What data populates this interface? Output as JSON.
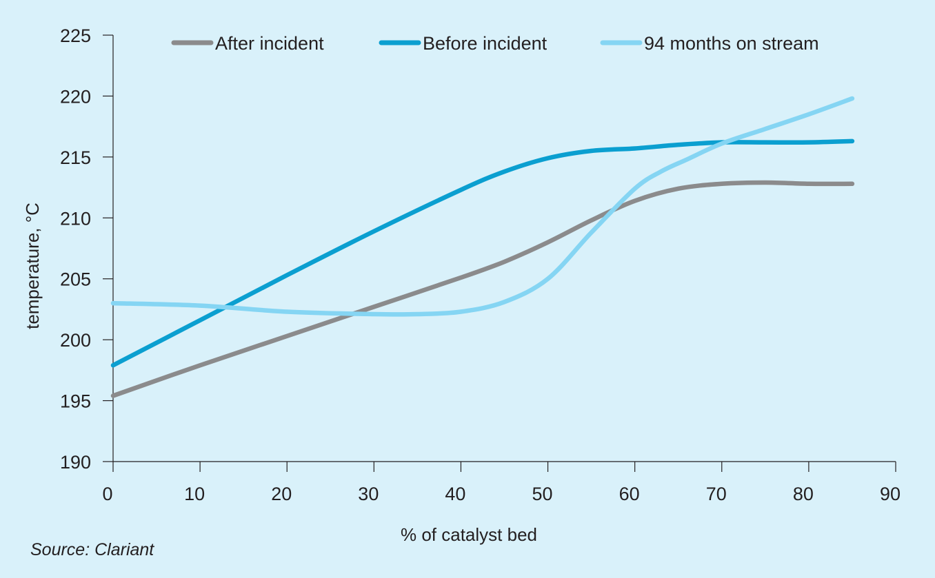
{
  "chart_data": {
    "type": "line",
    "xlabel": "% of catalyst bed",
    "ylabel": "temperature, °C",
    "xlim": [
      0,
      90
    ],
    "ylim": [
      190,
      225
    ],
    "x_ticks": [
      0,
      10,
      20,
      30,
      40,
      50,
      60,
      70,
      80,
      90
    ],
    "y_ticks": [
      190,
      195,
      200,
      205,
      210,
      215,
      220,
      225
    ],
    "grid": false,
    "legend_position": "top",
    "series": [
      {
        "name": "After incident",
        "color": "#8b8b8c",
        "x": [
          0,
          10,
          20,
          30,
          40,
          45,
          50,
          55,
          60,
          65,
          70,
          75,
          80,
          85
        ],
        "y": [
          195.4,
          197.9,
          200.3,
          202.7,
          205.1,
          206.4,
          208.0,
          209.8,
          211.4,
          212.4,
          212.8,
          212.9,
          212.8,
          212.8
        ]
      },
      {
        "name": "Before incident",
        "color": "#0b9fd0",
        "x": [
          0,
          10,
          20,
          30,
          40,
          45,
          50,
          55,
          60,
          65,
          70,
          75,
          80,
          85
        ],
        "y": [
          197.9,
          201.6,
          205.3,
          208.9,
          212.3,
          213.8,
          214.9,
          215.5,
          215.7,
          216.0,
          216.2,
          216.2,
          216.2,
          216.3
        ]
      },
      {
        "name": "94 months on stream",
        "color": "#85d5f3",
        "x": [
          0,
          10,
          20,
          30,
          35,
          40,
          45,
          50,
          55,
          60,
          63,
          66,
          70,
          75,
          80,
          85
        ],
        "y": [
          203.0,
          202.8,
          202.3,
          202.1,
          202.1,
          202.3,
          203.1,
          205.0,
          208.8,
          212.4,
          213.8,
          214.8,
          216.1,
          217.3,
          218.5,
          219.8
        ]
      }
    ]
  },
  "source": "Source: Clariant"
}
